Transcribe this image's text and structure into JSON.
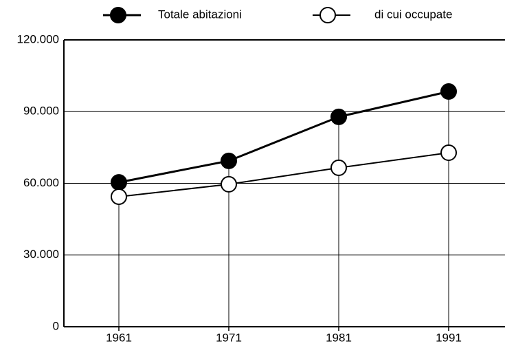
{
  "chart_data": {
    "type": "line",
    "categories": [
      "1961",
      "1971",
      "1981",
      "1991"
    ],
    "series": [
      {
        "name": "Totale abitazioni",
        "color": "#000000",
        "marker": "filled",
        "values": [
          60400,
          69400,
          87800,
          98400
        ]
      },
      {
        "name": "di cui occupate",
        "color": "#000000",
        "marker": "open",
        "values": [
          54400,
          59600,
          66500,
          72800
        ]
      }
    ],
    "ylim": [
      0,
      120000
    ],
    "yticks": [
      0,
      {
        "value": 30000,
        "label": "30.000"
      },
      {
        "value": 60000,
        "label": "60.000"
      },
      {
        "value": 90000,
        "label": "90.000"
      },
      {
        "value": 120000,
        "label": "120.000"
      }
    ],
    "grid": true,
    "legend": "top"
  }
}
